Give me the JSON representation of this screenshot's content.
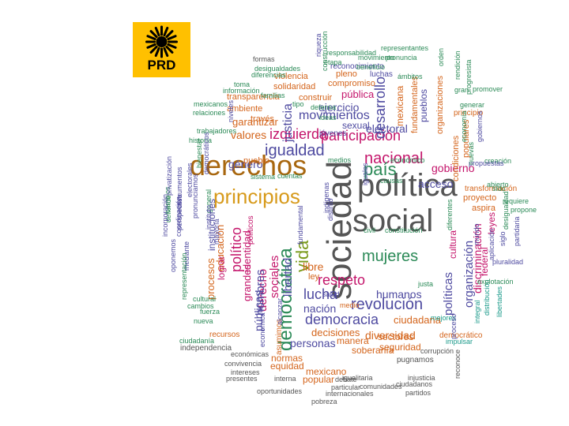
{
  "logo": {
    "text": "PRD",
    "background": "#FFC000",
    "color": "#000000"
  },
  "palette": {
    "orange": "#D4651C",
    "green": "#2B8A57",
    "magenta": "#C4156B",
    "purple": "#4E4AA0",
    "teal": "#1A9A8A",
    "gray": "#555555",
    "gold": "#D79A1B",
    "olive": "#7A9A1A",
    "brown": "#A8670F",
    "blue": "#4A5CA8"
  },
  "words": [
    {
      "t": "derechos",
      "c": "brown"
    },
    {
      "t": "política",
      "c": "gray"
    },
    {
      "t": "social",
      "c": "gray"
    },
    {
      "t": "sociedad",
      "c": "gray"
    },
    {
      "t": "principios",
      "c": "gold"
    },
    {
      "t": "democrática",
      "c": "green"
    },
    {
      "t": "igualdad",
      "c": "purple"
    },
    {
      "t": "nacional",
      "c": "magenta"
    },
    {
      "t": "país",
      "c": "green"
    },
    {
      "t": "mujeres",
      "c": "green"
    },
    {
      "t": "vida",
      "c": "olive"
    },
    {
      "t": "izquierda",
      "c": "magenta"
    },
    {
      "t": "participación",
      "c": "magenta"
    },
    {
      "t": "respeto",
      "c": "magenta"
    },
    {
      "t": "revolución",
      "c": "purple"
    },
    {
      "t": "democracia",
      "c": "purple"
    },
    {
      "t": "lucha",
      "c": "purple"
    },
    {
      "t": "desarrollo",
      "c": "purple"
    },
    {
      "t": "movimientos",
      "c": "purple"
    },
    {
      "t": "organización",
      "c": "purple"
    },
    {
      "t": "políticas",
      "c": "purple"
    },
    {
      "t": "sociales",
      "c": "magenta"
    },
    {
      "t": "derecho",
      "c": "magenta"
    },
    {
      "t": "político",
      "c": "magenta"
    },
    {
      "t": "hombres",
      "c": "purple"
    },
    {
      "t": "humanos",
      "c": "purple"
    },
    {
      "t": "nación",
      "c": "purple"
    },
    {
      "t": "diversidad",
      "c": "orange"
    },
    {
      "t": "decisiones",
      "c": "orange"
    },
    {
      "t": "personas",
      "c": "purple"
    },
    {
      "t": "ciudadana",
      "c": "orange"
    },
    {
      "t": "acceso",
      "c": "purple"
    },
    {
      "t": "gobierno",
      "c": "magenta"
    },
    {
      "t": "justicia",
      "c": "purple"
    },
    {
      "t": "ejercicio",
      "c": "purple"
    },
    {
      "t": "electoral",
      "c": "purple"
    },
    {
      "t": "sexual",
      "c": "purple"
    },
    {
      "t": "valores",
      "c": "orange"
    },
    {
      "t": "garantizar",
      "c": "orange"
    },
    {
      "t": "género",
      "c": "purple"
    },
    {
      "t": "libertad",
      "c": "purple"
    },
    {
      "t": "libre",
      "c": "orange"
    },
    {
      "t": "ley",
      "c": "orange"
    },
    {
      "t": "pueblos",
      "c": "purple"
    },
    {
      "t": "mexicana",
      "c": "orange"
    },
    {
      "t": "cultura",
      "c": "magenta"
    },
    {
      "t": "discriminación",
      "c": "magenta"
    },
    {
      "t": "federal",
      "c": "magenta"
    },
    {
      "t": "leyes",
      "c": "magenta"
    },
    {
      "t": "pública",
      "c": "magenta"
    },
    {
      "t": "públicas",
      "c": "purple"
    },
    {
      "t": "grandes",
      "c": "magenta"
    },
    {
      "t": "identidad",
      "c": "magenta"
    },
    {
      "t": "procesos",
      "c": "orange"
    },
    {
      "t": "educación",
      "c": "orange"
    },
    {
      "t": "lograr",
      "c": "magenta"
    },
    {
      "t": "seguridad",
      "c": "orange"
    },
    {
      "t": "sectores",
      "c": "orange"
    },
    {
      "t": "manera",
      "c": "orange"
    },
    {
      "t": "soberanía",
      "c": "orange"
    },
    {
      "t": "normas",
      "c": "orange"
    },
    {
      "t": "mexicano",
      "c": "orange"
    },
    {
      "t": "popular",
      "c": "orange"
    },
    {
      "t": "equidad",
      "c": "orange"
    },
    {
      "t": "transparencia",
      "c": "orange"
    },
    {
      "t": "construir",
      "c": "orange"
    },
    {
      "t": "compromiso",
      "c": "orange"
    },
    {
      "t": "violencia",
      "c": "orange"
    },
    {
      "t": "solidaridad",
      "c": "orange"
    },
    {
      "t": "ambiente",
      "c": "orange"
    },
    {
      "t": "pleno",
      "c": "orange"
    },
    {
      "t": "través",
      "c": "orange"
    },
    {
      "t": "pueblo",
      "c": "orange"
    },
    {
      "t": "proyecto",
      "c": "orange"
    },
    {
      "t": "aspira",
      "c": "orange"
    },
    {
      "t": "condiciones",
      "c": "orange"
    },
    {
      "t": "populares",
      "c": "orange"
    },
    {
      "t": "fundamentales",
      "c": "orange"
    },
    {
      "t": "organizaciones",
      "c": "orange"
    },
    {
      "t": "democrático",
      "c": "orange"
    },
    {
      "t": "luchas",
      "c": "purple"
    },
    {
      "t": "recursos",
      "c": "orange"
    },
    {
      "t": "asumimos",
      "c": "orange"
    },
    {
      "t": "instituciones",
      "c": "purple"
    },
    {
      "t": "políticos",
      "c": "magenta"
    },
    {
      "t": "principio",
      "c": "orange"
    },
    {
      "t": "transformación",
      "c": "orange"
    },
    {
      "t": "reconocimiento",
      "c": "purple"
    },
    {
      "t": "jóvenes",
      "c": "purple"
    },
    {
      "t": "mejores",
      "c": "teal"
    },
    {
      "t": "impulsar",
      "c": "teal"
    },
    {
      "t": "pugnamos",
      "c": "gray"
    },
    {
      "t": "integral",
      "c": "teal"
    },
    {
      "t": "distribución",
      "c": "teal"
    },
    {
      "t": "libertades",
      "c": "teal"
    },
    {
      "t": "independencia",
      "c": "gray"
    },
    {
      "t": "ciudadanía",
      "c": "green"
    },
    {
      "t": "convivencia",
      "c": "gray"
    },
    {
      "t": "económicas",
      "c": "gray"
    },
    {
      "t": "intereses",
      "c": "gray"
    },
    {
      "t": "presentes",
      "c": "gray"
    },
    {
      "t": "interna",
      "c": "gray"
    },
    {
      "t": "oportunidades",
      "c": "gray"
    },
    {
      "t": "internacionales",
      "c": "gray"
    },
    {
      "t": "partidos",
      "c": "gray"
    },
    {
      "t": "comunidades",
      "c": "gray"
    },
    {
      "t": "particular",
      "c": "gray"
    },
    {
      "t": "debate",
      "c": "gray"
    },
    {
      "t": "igualitaria",
      "c": "gray"
    },
    {
      "t": "ciudadanos",
      "c": "gray"
    },
    {
      "t": "injusticia",
      "c": "gray"
    },
    {
      "t": "pobreza",
      "c": "gray"
    },
    {
      "t": "reconoce",
      "c": "gray"
    },
    {
      "t": "corrupción",
      "c": "gray"
    },
    {
      "t": "formas",
      "c": "gray"
    },
    {
      "t": "responsabilidad",
      "c": "green"
    },
    {
      "t": "representantes",
      "c": "green"
    },
    {
      "t": "movimiento",
      "c": "green"
    },
    {
      "t": "pronuncia",
      "c": "green"
    },
    {
      "t": "desigualdades",
      "c": "green"
    },
    {
      "t": "diferencias",
      "c": "green"
    },
    {
      "t": "toma",
      "c": "green"
    },
    {
      "t": "información",
      "c": "green"
    },
    {
      "t": "familias",
      "c": "green"
    },
    {
      "t": "mexicanos",
      "c": "green"
    },
    {
      "t": "relaciones",
      "c": "green"
    },
    {
      "t": "trabajadores",
      "c": "green"
    },
    {
      "t": "historia",
      "c": "green"
    },
    {
      "t": "bienestar",
      "c": "green"
    },
    {
      "t": "defiende",
      "c": "green"
    },
    {
      "t": "cambios",
      "c": "green"
    },
    {
      "t": "medios",
      "c": "green"
    },
    {
      "t": "económico",
      "c": "green"
    },
    {
      "t": "causas",
      "c": "green"
    },
    {
      "t": "sistema",
      "c": "green"
    },
    {
      "t": "cuentas",
      "c": "green"
    },
    {
      "t": "ideas",
      "c": "green"
    },
    {
      "t": "defensa",
      "c": "green"
    },
    {
      "t": "tipo",
      "c": "green"
    },
    {
      "t": "etapa",
      "c": "green"
    },
    {
      "t": "beneficio",
      "c": "green"
    },
    {
      "t": "ámbitos",
      "c": "green"
    },
    {
      "t": "orden",
      "c": "green"
    },
    {
      "t": "gran",
      "c": "green"
    },
    {
      "t": "promover",
      "c": "green"
    },
    {
      "t": "generar",
      "c": "green"
    },
    {
      "t": "creación",
      "c": "green"
    },
    {
      "t": "abierto",
      "c": "green"
    },
    {
      "t": "requiere",
      "c": "green"
    },
    {
      "t": "propone",
      "c": "green"
    },
    {
      "t": "explotación",
      "c": "green"
    },
    {
      "t": "civil",
      "c": "green"
    },
    {
      "t": "constitución",
      "c": "green"
    },
    {
      "t": "justa",
      "c": "green"
    },
    {
      "t": "salud",
      "c": "purple"
    },
    {
      "t": "medio",
      "c": "orange"
    },
    {
      "t": "alcanzar",
      "c": "purple"
    },
    {
      "t": "nueva",
      "c": "green"
    },
    {
      "t": "fuerza",
      "c": "green"
    },
    {
      "t": "cultural",
      "c": "green"
    },
    {
      "t": "cambios",
      "c": "green"
    },
    {
      "t": "mediante",
      "c": "purple"
    },
    {
      "t": "pronunciamos",
      "c": "purple"
    },
    {
      "t": "perspectiva",
      "c": "purple"
    },
    {
      "t": "coordinación",
      "c": "purple"
    },
    {
      "t": "representación",
      "c": "green"
    },
    {
      "t": "oponemos",
      "c": "purple"
    },
    {
      "t": "incorporación",
      "c": "purple"
    },
    {
      "t": "privatización",
      "c": "purple"
    },
    {
      "t": "instrumentos",
      "c": "purple"
    },
    {
      "t": "electorales",
      "c": "purple"
    },
    {
      "t": "democráticos",
      "c": "purple"
    },
    {
      "t": "general",
      "c": "green"
    },
    {
      "t": "niveles",
      "c": "purple"
    },
    {
      "t": "instituto",
      "c": "purple"
    },
    {
      "t": "mayoría",
      "c": "purple"
    },
    {
      "t": "económica",
      "c": "purple"
    },
    {
      "t": "construcción",
      "c": "green"
    },
    {
      "t": "riqueza",
      "c": "purple"
    },
    {
      "t": "progresista",
      "c": "green"
    },
    {
      "t": "rendición",
      "c": "green"
    },
    {
      "t": "economía",
      "c": "green"
    },
    {
      "t": "gobiernos",
      "c": "purple"
    },
    {
      "t": "propuestas",
      "c": "purple"
    },
    {
      "t": "sido",
      "c": "green"
    },
    {
      "t": "desigualdad",
      "c": "green"
    },
    {
      "t": "partidaria",
      "c": "purple"
    },
    {
      "t": "pluralidad",
      "c": "purple"
    },
    {
      "t": "siglo",
      "c": "purple"
    },
    {
      "t": "mundo",
      "c": "purple"
    },
    {
      "t": "aplicación",
      "c": "purple"
    },
    {
      "t": "proceso",
      "c": "purple"
    },
    {
      "t": "diferentes",
      "c": "green"
    },
    {
      "t": "nuevas",
      "c": "green"
    },
    {
      "t": "iguales",
      "c": "purple"
    },
    {
      "t": "indígenas",
      "c": "purple"
    },
    {
      "t": "distinto",
      "c": "purple"
    },
    {
      "t": "fundamental",
      "c": "purple"
    },
    {
      "t": "libertarios",
      "c": "purple"
    }
  ]
}
